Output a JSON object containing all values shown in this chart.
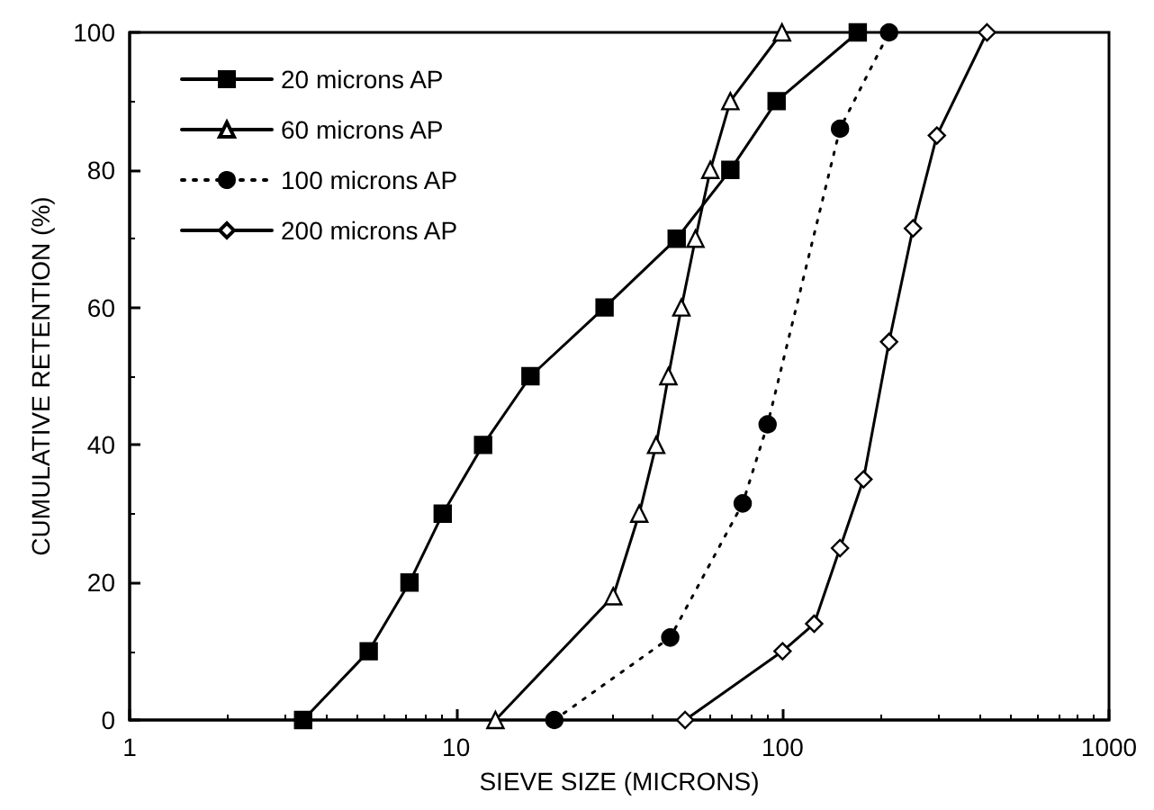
{
  "chart_data": {
    "type": "line",
    "xlabel": "SIEVE SIZE (MICRONS)",
    "ylabel": "CUMULATIVE RETENTION (%)",
    "log": "x",
    "xlim": [
      1,
      1000
    ],
    "xticks": [
      1,
      10,
      100,
      1000
    ],
    "ylim": [
      0,
      100
    ],
    "yticks": [
      0,
      20,
      40,
      60,
      80,
      100
    ],
    "grid": false,
    "legend": "top left",
    "series": [
      {
        "name": "20 microns AP",
        "color": "#000000",
        "marker": "square",
        "line_style": "solid",
        "x": [
          3.4,
          5.4,
          7.2,
          9.1,
          12.1,
          16.9,
          28.5,
          47.4,
          69.2,
          95.9,
          170
        ],
        "values": [
          0,
          10,
          20,
          30,
          40,
          50,
          60,
          70,
          80,
          90,
          100
        ]
      },
      {
        "name": "60 microns AP",
        "color": "#000000",
        "marker": "triangle",
        "line_style": "solid",
        "x": [
          13.2,
          30.3,
          36.4,
          41,
          44.7,
          49,
          54.1,
          60.1,
          69.2,
          99.6
        ],
        "values": [
          0,
          18,
          30,
          40,
          50,
          60,
          70,
          80,
          90,
          100
        ]
      },
      {
        "name": "100 microns AP",
        "color": "#000000",
        "marker": "circle",
        "line_style": "dotted",
        "x": [
          20,
          45.3,
          75.5,
          90,
          150,
          212
        ],
        "values": [
          0,
          12,
          31.5,
          43,
          86,
          100
        ]
      },
      {
        "name": "200 microns AP",
        "color": "#000000",
        "marker": "diamond",
        "line_style": "solid",
        "x": [
          50.3,
          100,
          125,
          150,
          177,
          212,
          251,
          297,
          423
        ],
        "values": [
          0,
          10,
          14,
          25,
          35,
          55,
          71.5,
          85,
          100
        ]
      }
    ]
  }
}
